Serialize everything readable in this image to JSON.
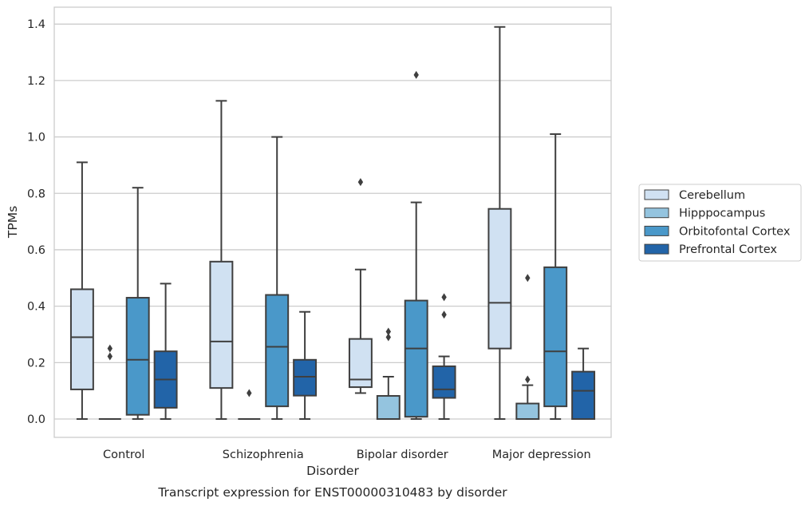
{
  "chart_data": {
    "type": "boxplot",
    "title": "",
    "caption": "Transcript expression for ENST00000310483 by disorder",
    "xlabel": "Disorder",
    "ylabel": "TPMs",
    "ylim": [
      -0.065,
      1.46
    ],
    "yticks": [
      0.0,
      0.2,
      0.4,
      0.6,
      0.8,
      1.0,
      1.2,
      1.4
    ],
    "ytick_labels": [
      "0.0",
      "0.2",
      "0.4",
      "0.6",
      "0.8",
      "1.0",
      "1.2",
      "1.4"
    ],
    "grid": true,
    "legend_position": "right",
    "categories": [
      "Control",
      "Schizophrenia",
      "Bipolar disorder",
      "Major depression"
    ],
    "series": [
      {
        "name": "Cerebellum",
        "color": "#d0e1f2",
        "boxes": [
          {
            "whisker_low": 0.0,
            "q1": 0.105,
            "median": 0.29,
            "q3": 0.46,
            "whisker_high": 0.91,
            "outliers": []
          },
          {
            "whisker_low": 0.0,
            "q1": 0.11,
            "median": 0.275,
            "q3": 0.558,
            "whisker_high": 1.128,
            "outliers": []
          },
          {
            "whisker_low": 0.092,
            "q1": 0.113,
            "median": 0.14,
            "q3": 0.284,
            "whisker_high": 0.53,
            "outliers": [
              0.84
            ]
          },
          {
            "whisker_low": 0.0,
            "q1": 0.25,
            "median": 0.412,
            "q3": 0.745,
            "whisker_high": 1.39,
            "outliers": []
          }
        ]
      },
      {
        "name": "Hipppocampus",
        "color": "#94c4df",
        "boxes": [
          {
            "whisker_low": 0.0,
            "q1": 0.0,
            "median": 0.0,
            "q3": 0.0,
            "whisker_high": 0.0,
            "outliers": [
              0.222,
              0.25
            ]
          },
          {
            "whisker_low": 0.0,
            "q1": 0.0,
            "median": 0.0,
            "q3": 0.0,
            "whisker_high": 0.0,
            "outliers": [
              0.092
            ]
          },
          {
            "whisker_low": 0.0,
            "q1": 0.0,
            "median": 0.0,
            "q3": 0.082,
            "whisker_high": 0.15,
            "outliers": [
              0.29,
              0.31
            ]
          },
          {
            "whisker_low": 0.0,
            "q1": 0.0,
            "median": 0.0,
            "q3": 0.055,
            "whisker_high": 0.12,
            "outliers": [
              0.14,
              0.5
            ]
          }
        ]
      },
      {
        "name": "Orbitofontal Cortex",
        "color": "#4a98c9",
        "boxes": [
          {
            "whisker_low": 0.0,
            "q1": 0.015,
            "median": 0.21,
            "q3": 0.43,
            "whisker_high": 0.82,
            "outliers": []
          },
          {
            "whisker_low": 0.0,
            "q1": 0.045,
            "median": 0.256,
            "q3": 0.44,
            "whisker_high": 1.0,
            "outliers": []
          },
          {
            "whisker_low": 0.0,
            "q1": 0.008,
            "median": 0.25,
            "q3": 0.42,
            "whisker_high": 0.768,
            "outliers": [
              1.22
            ]
          },
          {
            "whisker_low": 0.0,
            "q1": 0.045,
            "median": 0.24,
            "q3": 0.538,
            "whisker_high": 1.01,
            "outliers": []
          }
        ]
      },
      {
        "name": "Prefrontal Cortex",
        "color": "#2264a8",
        "boxes": [
          {
            "whisker_low": 0.0,
            "q1": 0.04,
            "median": 0.14,
            "q3": 0.24,
            "whisker_high": 0.48,
            "outliers": []
          },
          {
            "whisker_low": 0.0,
            "q1": 0.083,
            "median": 0.15,
            "q3": 0.21,
            "whisker_high": 0.38,
            "outliers": []
          },
          {
            "whisker_low": 0.0,
            "q1": 0.075,
            "median": 0.105,
            "q3": 0.187,
            "whisker_high": 0.222,
            "outliers": [
              0.37,
              0.432
            ]
          },
          {
            "whisker_low": 0.0,
            "q1": 0.0,
            "median": 0.1,
            "q3": 0.168,
            "whisker_high": 0.25,
            "outliers": []
          }
        ]
      }
    ]
  }
}
